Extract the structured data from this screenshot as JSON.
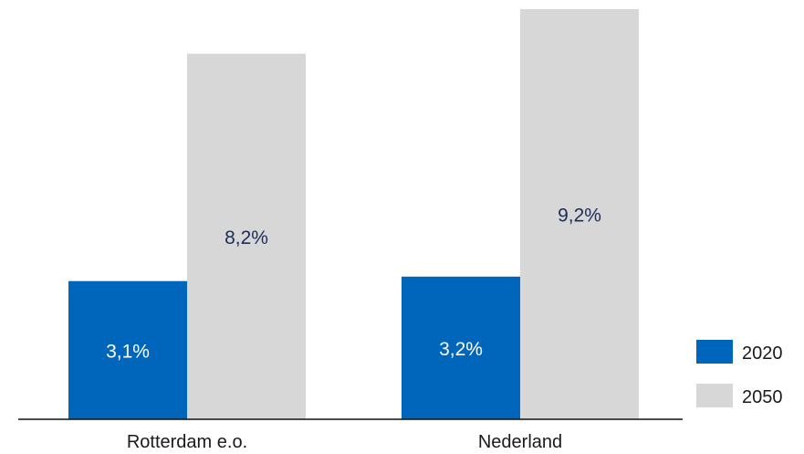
{
  "chart_data": {
    "type": "bar",
    "categories": [
      "Rotterdam e.o.",
      "Nederland"
    ],
    "series": [
      {
        "name": "2020",
        "values": [
          3.1,
          3.2
        ],
        "labels": [
          "3,1%",
          "3,2%"
        ],
        "color": "#0066bb",
        "label_color": "#ffffff"
      },
      {
        "name": "2050",
        "values": [
          8.2,
          9.2
        ],
        "labels": [
          "8,2%",
          "9,2%"
        ],
        "color": "#d7d7d7",
        "label_color": "#1c2d5a"
      }
    ],
    "ylim": [
      0,
      9.2
    ],
    "grid": false,
    "legend_position": "bottom-right"
  }
}
